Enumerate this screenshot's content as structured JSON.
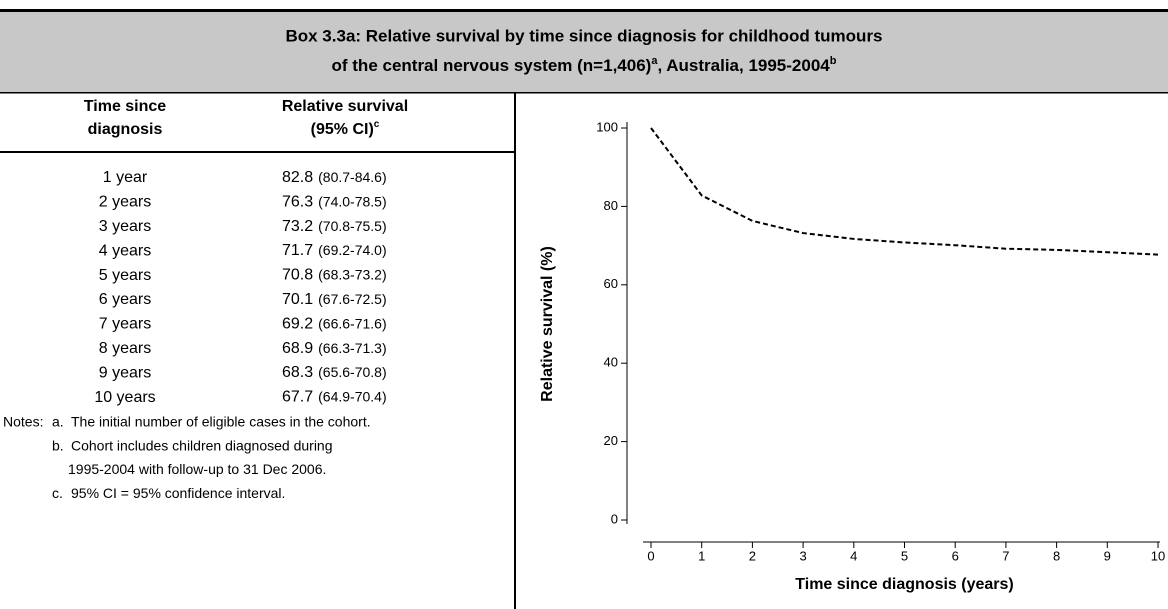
{
  "header": {
    "line1": "Box 3.3a: Relative survival by time since diagnosis for childhood tumours",
    "line2_text1": "of the central nervous system (n=1,406)",
    "line2_sup1": "a",
    "line2_text2": ", Australia, 1995-2004",
    "line2_sup2": "b"
  },
  "table": {
    "columns": [
      {
        "lines": [
          "Time since",
          "diagnosis"
        ]
      },
      {
        "lines": [
          "Relative survival",
          "(95% CI)"
        ],
        "sup": "c"
      }
    ],
    "rows": [
      [
        "1 year",
        82.8,
        "(80.7-84.6)"
      ],
      [
        "2 years",
        76.3,
        "(74.0-78.5)"
      ],
      [
        "3 years",
        73.2,
        "(70.8-75.5)"
      ],
      [
        "4 years",
        71.7,
        "(69.2-74.0)"
      ],
      [
        "5 years",
        70.8,
        "(68.3-73.2)"
      ],
      [
        "6 years",
        70.1,
        "(67.6-72.5)"
      ],
      [
        "7 years",
        69.2,
        "(66.6-71.6)"
      ],
      [
        "8 years",
        68.9,
        "(66.3-71.3)"
      ],
      [
        "9 years",
        68.3,
        "(65.6-70.8)"
      ],
      [
        "10 years",
        67.7,
        "(64.9-70.4)"
      ]
    ]
  },
  "notes": {
    "label": "Notes:",
    "items": [
      {
        "marker": "a.",
        "lines": [
          "The initial number of eligible cases in the cohort."
        ]
      },
      {
        "marker": "b.",
        "lines": [
          "Cohort includes children diagnosed during",
          "1995-2004 with follow-up to 31 Dec 2006."
        ]
      },
      {
        "marker": "c.",
        "lines": [
          "95% CI = 95% confidence interval."
        ]
      }
    ]
  },
  "chart_data": {
    "type": "line",
    "x": [
      0,
      1,
      2,
      3,
      4,
      5,
      6,
      7,
      8,
      9,
      10
    ],
    "values": [
      100,
      82.8,
      76.3,
      73.2,
      71.7,
      70.8,
      70.1,
      69.2,
      68.9,
      68.3,
      67.7
    ],
    "color": "#000000",
    "line_style": "dashed",
    "xlabel": "Time since diagnosis (years)",
    "ylabel": "Relative survival (%)",
    "xlim": [
      0,
      10
    ],
    "ylim": [
      0,
      100
    ],
    "xticks": [
      0,
      1,
      2,
      3,
      4,
      5,
      6,
      7,
      8,
      9,
      10
    ],
    "yticks": [
      0,
      20,
      40,
      60,
      80,
      100
    ]
  }
}
